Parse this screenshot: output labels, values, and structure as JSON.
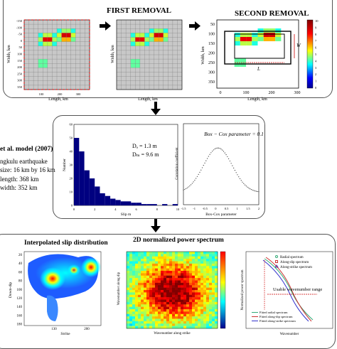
{
  "top": {
    "first_removal": "FIRST REMOVAL",
    "second_removal": "SECOND REMOVAL",
    "ylabel": "Width, km",
    "xlabel": "Length, km",
    "x_ticks": [
      "100",
      "200",
      "300"
    ],
    "y_ticks_left": [
      "-150",
      "-100",
      "-50",
      "0",
      "50",
      "100",
      "150",
      "200",
      "250",
      "300",
      "350"
    ],
    "y_ticks_big": [
      "50",
      "100",
      "150",
      "200",
      "250",
      "300",
      "350"
    ],
    "x_ticks_big": [
      "0",
      "100",
      "200",
      "300"
    ],
    "dim_w": "W",
    "dim_l": "L",
    "colorbar_ticks": [
      "10",
      "9",
      "8",
      "7",
      "6",
      "5",
      "4",
      "3",
      "2",
      "1",
      "0"
    ]
  },
  "middle": {
    "model_title": "et al. model (2007)",
    "lines": [
      "ngkulu earthquake",
      "size: 16 km by 16 km",
      "length: 368 km",
      "width: 352 km"
    ],
    "hist_ylabel": "Number",
    "hist_xlabel": "Slip m",
    "hist_yticks": [
      "0",
      "10",
      "20",
      "30",
      "40",
      "50",
      "60"
    ],
    "hist_xticks": [
      "0",
      "2",
      "4",
      "6",
      "8",
      "10"
    ],
    "da": "Dₐ = 1.3 m",
    "dm": "Dₘ = 9.6 m",
    "bc_title": "Box − Cox parameter = 0.1",
    "bc_ylabel": "Correlation coefficient",
    "bc_xlabel": "Box-Cox parameter",
    "bc_xticks": [
      "-1.5",
      "-1",
      "-0.5",
      "0",
      "0.5",
      "1",
      "1.5",
      "2"
    ]
  },
  "bottom": {
    "interp_title": "Interpolated slip distribution",
    "interp_ylabel": "Down-dip",
    "interp_xlabel": "Strike",
    "interp_yticks": [
      "20",
      "40",
      "60",
      "80",
      "100",
      "120",
      "140",
      "160",
      "180"
    ],
    "interp_xticks": [
      "130",
      "200"
    ],
    "power_title": "2D normalized power spectrum",
    "power_ylabel": "Wavenumber along dip",
    "power_xlabel": "Wavenumber along strike",
    "spec_ylabel": "Normalized power spectrum",
    "spec_xlabel": "Wavenumber",
    "legend": [
      "Radial spectrum",
      "Along-dip spectrum",
      "Along-strike spectrum",
      "Fitted radial spectrum",
      "Fitted along-dip spectrum",
      "Fitted along-strike spectrum"
    ],
    "usable_range": "Usable wavenumber range"
  },
  "chart_data": {
    "type": "bar",
    "xlabel": "Slip m",
    "ylabel": "Number",
    "xlim": [
      0,
      10
    ],
    "ylim": [
      0,
      60
    ],
    "x": [
      0.25,
      0.75,
      1.25,
      1.75,
      2.25,
      2.75,
      3.25,
      3.75,
      4.25,
      4.75,
      5.25,
      5.75,
      6.25,
      6.75,
      7.25,
      7.75,
      8.25,
      8.75,
      9.25,
      9.75
    ],
    "values": [
      50,
      40,
      26,
      20,
      14,
      9,
      7,
      5,
      4,
      3,
      3,
      2,
      2,
      1,
      1,
      1,
      0,
      1,
      0,
      1
    ]
  },
  "colors": {
    "panel_border": "#555555",
    "hist_bar": "#000080",
    "bbox_red": "#cc0000",
    "grid_bg": "#c8c8c8"
  }
}
